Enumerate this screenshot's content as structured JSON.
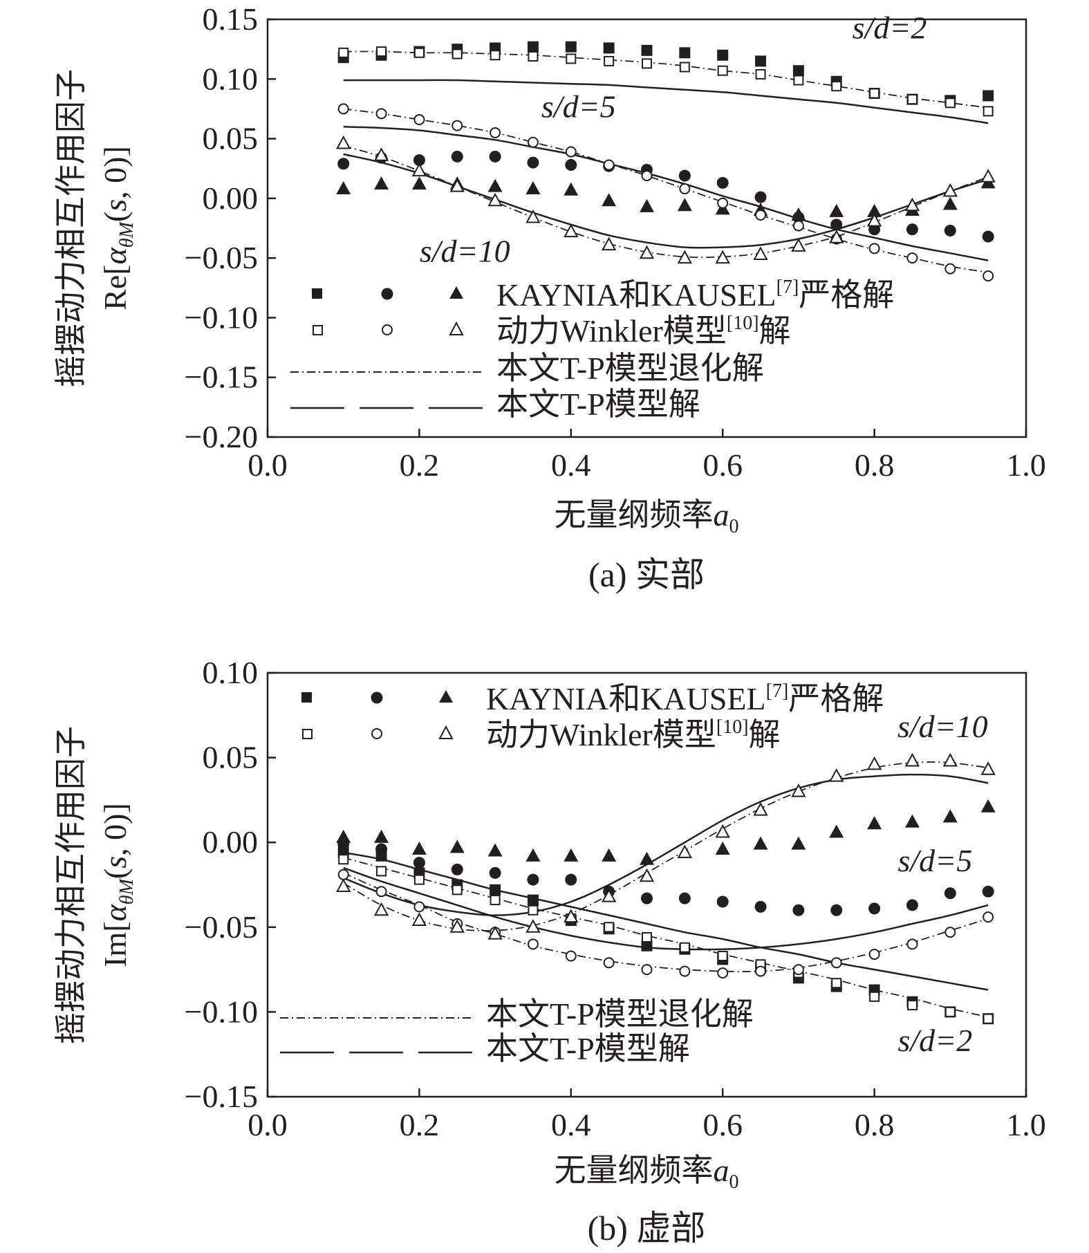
{
  "chart_data": [
    {
      "type": "line",
      "panel": "a",
      "caption": "(a) 实部",
      "xlabel": "无量纲频率a₀",
      "xlabel_main": "无量纲频率",
      "xlabel_var": "a",
      "xlabel_sub": "0",
      "ylabel_cn": "摇摆动力相互作用因子",
      "ylabel_math": "Re[αθM(s, 0)]",
      "ylabel_prefix": "Re[",
      "ylabel_alpha": "α",
      "ylabel_sub": "θM",
      "ylabel_open": "(",
      "ylabel_s": "s",
      "ylabel_suffix": ", 0)]",
      "xlim": [
        0.0,
        1.0
      ],
      "ylim": [
        -0.2,
        0.15
      ],
      "xticks": [
        "0.0",
        "0.2",
        "0.4",
        "0.6",
        "0.8",
        "1.0"
      ],
      "yticks": [
        "0.15",
        "0.10",
        "0.05",
        "0.00",
        "−0.05",
        "−0.10",
        "−0.15",
        "−0.20"
      ],
      "annotations": [
        {
          "label": "s/d=2",
          "x": 0.82,
          "y": 0.134
        },
        {
          "label": "s/d=5",
          "x": 0.41,
          "y": 0.068
        },
        {
          "label": "s/d=10",
          "x": 0.26,
          "y": -0.053
        }
      ],
      "legend": {
        "position": "bottom-left",
        "kaynia_label": "KAYNIA和KAUSEL",
        "kaynia_ref": "[7]",
        "kaynia_suffix": "严格解",
        "winkler_label": "动力Winkler模型",
        "winkler_ref": "[10]",
        "winkler_suffix": "解",
        "degenerate_label": "本文T-P模型退化解",
        "tp_label": "本文T-P模型解"
      },
      "x": [
        0.1,
        0.15,
        0.2,
        0.25,
        0.3,
        0.35,
        0.4,
        0.45,
        0.5,
        0.55,
        0.6,
        0.65,
        0.7,
        0.75,
        0.8,
        0.85,
        0.9,
        0.95
      ],
      "series": [
        {
          "name": "s/d=2 KAYNIA和KAUSEL严格解",
          "kind": "markers",
          "marker": "square-filled",
          "values": [
            0.118,
            0.12,
            0.123,
            0.125,
            0.126,
            0.127,
            0.127,
            0.126,
            0.124,
            0.122,
            0.12,
            0.115,
            0.107,
            0.098,
            0.088,
            0.083,
            0.082,
            0.086
          ]
        },
        {
          "name": "s/d=5 KAYNIA和KAUSEL严格解",
          "kind": "markers",
          "marker": "circle-filled",
          "values": [
            0.029,
            0.034,
            0.032,
            0.035,
            0.035,
            0.03,
            0.028,
            0.027,
            0.024,
            0.019,
            0.013,
            0.001,
            -0.016,
            -0.022,
            -0.026,
            -0.026,
            -0.027,
            -0.032
          ]
        },
        {
          "name": "s/d=10 KAYNIA和KAUSEL严格解",
          "kind": "markers",
          "marker": "triangle-filled",
          "values": [
            0.008,
            0.012,
            0.012,
            0.012,
            0.01,
            0.008,
            0.007,
            -0.002,
            -0.007,
            -0.006,
            -0.009,
            -0.01,
            -0.014,
            -0.011,
            -0.011,
            -0.01,
            -0.005,
            0.013
          ]
        },
        {
          "name": "s/d=2 动力Winkler模型解",
          "kind": "markers",
          "marker": "square-open",
          "values": [
            0.122,
            0.123,
            0.122,
            0.121,
            0.12,
            0.119,
            0.117,
            0.115,
            0.113,
            0.11,
            0.107,
            0.104,
            0.099,
            0.094,
            0.088,
            0.083,
            0.08,
            0.073
          ]
        },
        {
          "name": "s/d=5 动力Winkler模型解",
          "kind": "markers",
          "marker": "circle-open",
          "values": [
            0.075,
            0.071,
            0.066,
            0.061,
            0.055,
            0.047,
            0.039,
            0.028,
            0.019,
            0.008,
            -0.004,
            -0.014,
            -0.023,
            -0.034,
            -0.042,
            -0.05,
            -0.059,
            -0.065
          ]
        },
        {
          "name": "s/d=10 动力Winkler模型解",
          "kind": "markers",
          "marker": "triangle-open",
          "values": [
            0.046,
            0.036,
            0.023,
            0.01,
            -0.002,
            -0.016,
            -0.028,
            -0.039,
            -0.046,
            -0.05,
            -0.05,
            -0.047,
            -0.04,
            -0.033,
            -0.019,
            -0.006,
            0.006,
            0.018
          ]
        },
        {
          "name": "s/d=2 本文T-P模型退化解",
          "kind": "line",
          "style": "dashdot",
          "values": [
            0.123,
            0.123,
            0.122,
            0.122,
            0.121,
            0.12,
            0.118,
            0.116,
            0.114,
            0.111,
            0.107,
            0.104,
            0.099,
            0.094,
            0.089,
            0.084,
            0.08,
            0.076
          ]
        },
        {
          "name": "s/d=5 本文T-P模型退化解",
          "kind": "line",
          "style": "dashdot",
          "values": [
            0.075,
            0.071,
            0.066,
            0.061,
            0.055,
            0.047,
            0.039,
            0.029,
            0.019,
            0.008,
            -0.003,
            -0.014,
            -0.024,
            -0.034,
            -0.043,
            -0.05,
            -0.057,
            -0.062
          ]
        },
        {
          "name": "s/d=10 本文T-P模型退化解",
          "kind": "line",
          "style": "dashdot",
          "values": [
            0.044,
            0.035,
            0.023,
            0.01,
            -0.003,
            -0.016,
            -0.028,
            -0.038,
            -0.045,
            -0.049,
            -0.049,
            -0.046,
            -0.04,
            -0.032,
            -0.02,
            -0.007,
            0.006,
            0.018
          ]
        },
        {
          "name": "s/d=2 本文T-P模型解",
          "kind": "line",
          "style": "solid",
          "values": [
            0.099,
            0.099,
            0.099,
            0.099,
            0.098,
            0.097,
            0.096,
            0.095,
            0.093,
            0.091,
            0.089,
            0.086,
            0.083,
            0.08,
            0.076,
            0.072,
            0.068,
            0.063
          ]
        },
        {
          "name": "s/d=5 本文T-P模型解",
          "kind": "line",
          "style": "solid",
          "values": [
            0.06,
            0.059,
            0.057,
            0.053,
            0.049,
            0.043,
            0.037,
            0.029,
            0.021,
            0.012,
            0.002,
            -0.007,
            -0.017,
            -0.026,
            -0.033,
            -0.04,
            -0.046,
            -0.052
          ]
        },
        {
          "name": "s/d=10 本文T-P模型解",
          "kind": "line",
          "style": "solid",
          "values": [
            0.037,
            0.03,
            0.021,
            0.01,
            -0.001,
            -0.012,
            -0.022,
            -0.031,
            -0.037,
            -0.041,
            -0.041,
            -0.039,
            -0.034,
            -0.026,
            -0.016,
            -0.005,
            0.006,
            0.016
          ]
        }
      ]
    },
    {
      "type": "line",
      "panel": "b",
      "caption": "(b) 虚部",
      "xlabel": "无量纲频率a₀",
      "xlabel_main": "无量纲频率",
      "xlabel_var": "a",
      "xlabel_sub": "0",
      "ylabel_cn": "摇摆动力相互作用因子",
      "ylabel_math": "Im[αθM(s, 0)]",
      "ylabel_prefix": "Im[",
      "ylabel_alpha": "α",
      "ylabel_sub": "θM",
      "ylabel_open": "(",
      "ylabel_s": "s",
      "ylabel_suffix": ", 0)]",
      "xlim": [
        0.0,
        1.0
      ],
      "ylim": [
        -0.15,
        0.1
      ],
      "xticks": [
        "0.0",
        "0.2",
        "0.4",
        "0.6",
        "0.8",
        "1.0"
      ],
      "yticks": [
        "0.10",
        "0.05",
        "0.00",
        "−0.05",
        "−0.10",
        "−0.15"
      ],
      "annotations": [
        {
          "label": "s/d=10",
          "x": 0.89,
          "y": 0.062
        },
        {
          "label": "s/d=5",
          "x": 0.88,
          "y": -0.017
        },
        {
          "label": "s/d=2",
          "x": 0.88,
          "y": -0.123
        }
      ],
      "legend": {
        "position": "top-left",
        "kaynia_label": "KAYNIA和KAUSEL",
        "kaynia_ref": "[7]",
        "kaynia_suffix": "严格解",
        "winkler_label": "动力Winkler模型",
        "winkler_ref": "[10]",
        "winkler_suffix": "解",
        "degenerate_label": "本文T-P模型退化解",
        "tp_label": "本文T-P模型解"
      },
      "x": [
        0.1,
        0.15,
        0.2,
        0.25,
        0.3,
        0.35,
        0.4,
        0.45,
        0.5,
        0.55,
        0.6,
        0.65,
        0.7,
        0.75,
        0.8,
        0.85,
        0.9,
        0.95
      ],
      "series": [
        {
          "name": "s/d=2 KAYNIA和KAUSEL严格解",
          "kind": "markers",
          "marker": "square-filled",
          "values": [
            -0.006,
            -0.008,
            -0.018,
            -0.025,
            -0.028,
            -0.034,
            -0.046,
            -0.051,
            -0.061,
            -0.063,
            -0.069,
            -0.074,
            -0.08,
            -0.085,
            -0.087,
            -0.094,
            -0.1,
            -0.104
          ]
        },
        {
          "name": "s/d=5 KAYNIA和KAUSEL严格解",
          "kind": "markers",
          "marker": "circle-filled",
          "values": [
            -0.001,
            -0.004,
            -0.012,
            -0.016,
            -0.018,
            -0.022,
            -0.022,
            -0.029,
            -0.033,
            -0.033,
            -0.035,
            -0.038,
            -0.04,
            -0.04,
            -0.039,
            -0.037,
            -0.03,
            -0.029
          ]
        },
        {
          "name": "s/d=10 KAYNIA和KAUSEL严格解",
          "kind": "markers",
          "marker": "triangle-filled",
          "values": [
            0.003,
            0.003,
            -0.004,
            -0.003,
            -0.005,
            -0.008,
            -0.008,
            -0.008,
            -0.01,
            -0.006,
            -0.004,
            -0.001,
            -0.001,
            0.006,
            0.011,
            0.012,
            0.015,
            0.021
          ]
        },
        {
          "name": "s/d=2 动力Winkler模型解",
          "kind": "markers",
          "marker": "square-open",
          "values": [
            -0.01,
            -0.017,
            -0.022,
            -0.028,
            -0.034,
            -0.04,
            -0.045,
            -0.05,
            -0.056,
            -0.062,
            -0.067,
            -0.072,
            -0.077,
            -0.083,
            -0.091,
            -0.096,
            -0.1,
            -0.104
          ]
        },
        {
          "name": "s/d=5 动力Winkler模型解",
          "kind": "markers",
          "marker": "circle-open",
          "values": [
            -0.019,
            -0.029,
            -0.038,
            -0.048,
            -0.053,
            -0.06,
            -0.067,
            -0.071,
            -0.075,
            -0.076,
            -0.077,
            -0.076,
            -0.075,
            -0.071,
            -0.066,
            -0.06,
            -0.053,
            -0.044
          ]
        },
        {
          "name": "s/d=10 动力Winkler模型解",
          "kind": "markers",
          "marker": "triangle-open",
          "values": [
            -0.026,
            -0.04,
            -0.046,
            -0.05,
            -0.054,
            -0.05,
            -0.044,
            -0.032,
            -0.02,
            -0.006,
            0.006,
            0.019,
            0.03,
            0.039,
            0.046,
            0.048,
            0.048,
            0.043
          ]
        },
        {
          "name": "s/d=2 本文T-P模型退化解",
          "kind": "line",
          "style": "dashdot",
          "values": [
            -0.009,
            -0.015,
            -0.021,
            -0.027,
            -0.033,
            -0.039,
            -0.044,
            -0.049,
            -0.055,
            -0.06,
            -0.066,
            -0.071,
            -0.076,
            -0.081,
            -0.087,
            -0.092,
            -0.098,
            -0.103
          ]
        },
        {
          "name": "s/d=5 本文T-P模型退化解",
          "kind": "line",
          "style": "dashdot",
          "values": [
            -0.018,
            -0.028,
            -0.037,
            -0.047,
            -0.054,
            -0.061,
            -0.066,
            -0.07,
            -0.073,
            -0.075,
            -0.076,
            -0.076,
            -0.074,
            -0.07,
            -0.065,
            -0.059,
            -0.052,
            -0.045
          ]
        },
        {
          "name": "s/d=10 本文T-P模型退化解",
          "kind": "line",
          "style": "dashdot",
          "values": [
            -0.024,
            -0.037,
            -0.046,
            -0.051,
            -0.052,
            -0.049,
            -0.042,
            -0.031,
            -0.018,
            -0.005,
            0.008,
            0.02,
            0.03,
            0.038,
            0.044,
            0.047,
            0.047,
            0.044
          ]
        },
        {
          "name": "s/d=2 本文T-P模型解",
          "kind": "line",
          "style": "solid",
          "values": [
            -0.006,
            -0.01,
            -0.016,
            -0.022,
            -0.028,
            -0.033,
            -0.038,
            -0.043,
            -0.048,
            -0.053,
            -0.057,
            -0.062,
            -0.066,
            -0.071,
            -0.075,
            -0.079,
            -0.083,
            -0.087
          ]
        },
        {
          "name": "s/d=5 本文T-P模型解",
          "kind": "line",
          "style": "solid",
          "values": [
            -0.015,
            -0.023,
            -0.03,
            -0.037,
            -0.044,
            -0.05,
            -0.055,
            -0.059,
            -0.062,
            -0.063,
            -0.063,
            -0.062,
            -0.06,
            -0.057,
            -0.053,
            -0.048,
            -0.043,
            -0.037
          ]
        },
        {
          "name": "s/d=10 本文T-P模型解",
          "kind": "line",
          "style": "solid",
          "values": [
            -0.021,
            -0.03,
            -0.037,
            -0.041,
            -0.043,
            -0.041,
            -0.035,
            -0.025,
            -0.013,
            0.0,
            0.013,
            0.024,
            0.032,
            0.037,
            0.039,
            0.04,
            0.039,
            0.035
          ]
        }
      ]
    }
  ]
}
